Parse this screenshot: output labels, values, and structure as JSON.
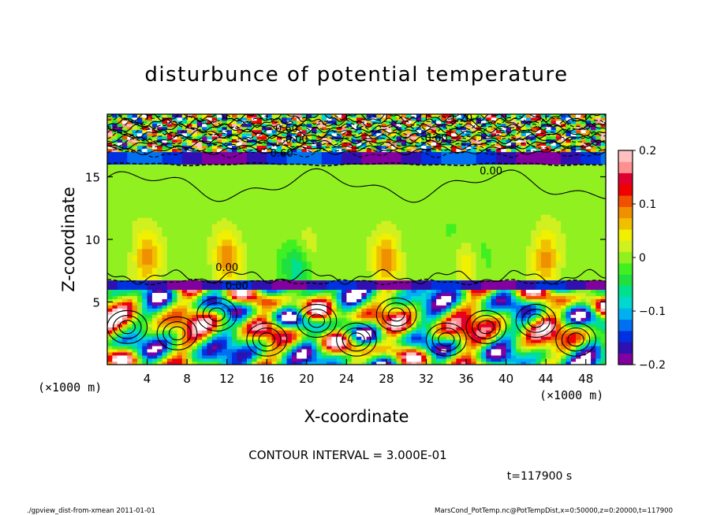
{
  "chart_data": {
    "type": "heatmap",
    "title": "disturbunce of potential temperature",
    "xlabel": "X-coordinate",
    "ylabel": "Z-coordinate",
    "x_unit": "(×1000 m)",
    "y_unit": "(×1000 m)",
    "xlim": [
      0,
      50
    ],
    "ylim": [
      0,
      20
    ],
    "x_ticks": [
      4,
      8,
      12,
      16,
      20,
      24,
      28,
      32,
      36,
      40,
      44,
      48
    ],
    "y_ticks": [
      5,
      10,
      15
    ],
    "colorbar": {
      "range": [
        -0.2,
        0.2
      ],
      "ticks": [
        {
          "value": 0.2,
          "label": "0.2"
        },
        {
          "value": 0.1,
          "label": "0.1"
        },
        {
          "value": 0,
          "label": "0"
        },
        {
          "value": -0.1,
          "label": "−0.1"
        },
        {
          "value": -0.2,
          "label": "−0.2"
        }
      ],
      "colors": [
        "#8000a0",
        "#3010b0",
        "#0030e0",
        "#0070f0",
        "#00b0f0",
        "#00d8d0",
        "#00e090",
        "#20e040",
        "#40f020",
        "#90f020",
        "#d0f020",
        "#f0f000",
        "#f0c000",
        "#f09000",
        "#f05000",
        "#f00000",
        "#e00030",
        "#ff9090",
        "#ffc0c0"
      ]
    },
    "contour_labels": [
      "1.20",
      "0.60",
      "0.00",
      "0.60",
      "0.60",
      "0.00",
      "0.00",
      "0.00"
    ],
    "regions": [
      {
        "z_range": [
          16.5,
          20
        ],
        "pattern": "dense contours with small-scale color patches"
      },
      {
        "z_range": [
          16,
          17
        ],
        "pattern": "strong negative layer"
      },
      {
        "z_range": [
          6.5,
          16
        ],
        "pattern": "near zero with weak positive and negative patches"
      },
      {
        "z_range": [
          6,
          6.8
        ],
        "pattern": "strong negative layer"
      },
      {
        "z_range": [
          0,
          6
        ],
        "pattern": "mixed eddies, values -0.2 to 0.2"
      }
    ]
  },
  "annotations": {
    "contour_interval": "CONTOUR INTERVAL = 3.000E-01",
    "time": "t=117900 s",
    "footer_left": "./gpview_dist-from-xmean  2011-01-01",
    "footer_right": "MarsCond_PotTemp.nc@PotTempDist,x=0:50000,z=0:20000,t=117900"
  }
}
